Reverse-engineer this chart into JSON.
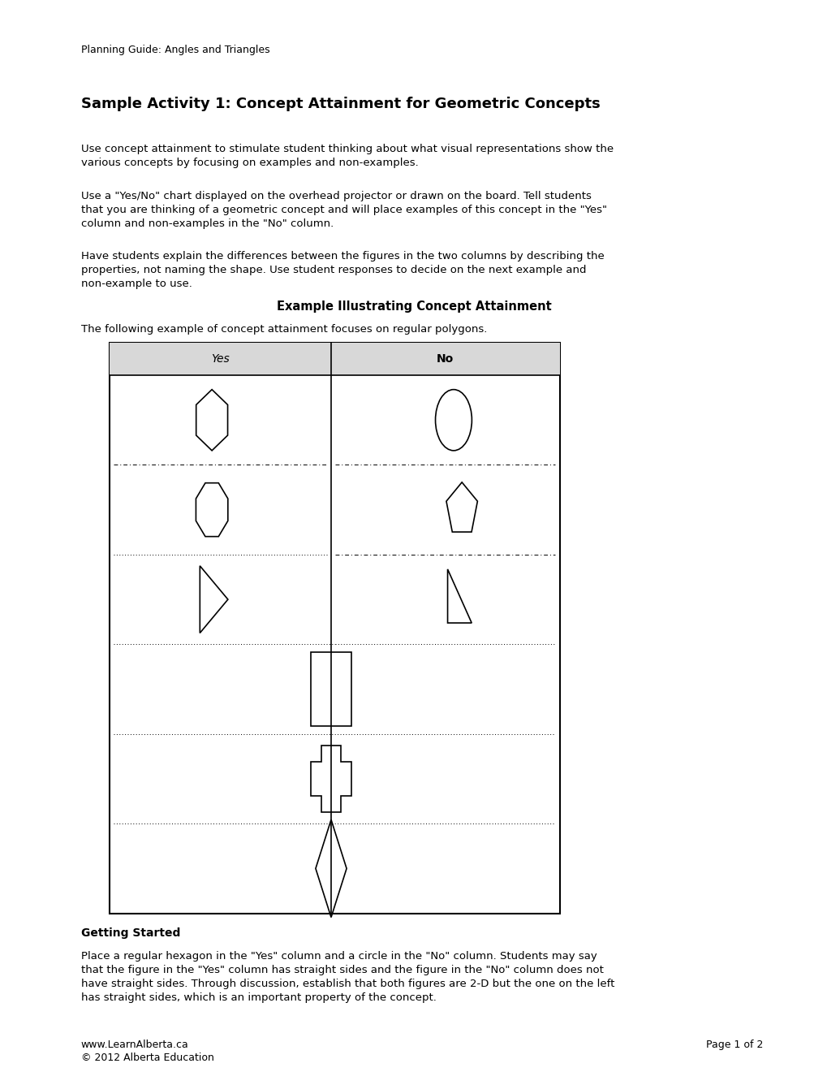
{
  "page_width": 10.2,
  "page_height": 13.2,
  "bg_color": "#ffffff",
  "header_text": "Planning Guide: Angles and Triangles",
  "title": "Sample Activity 1: Concept Attainment for Geometric Concepts",
  "para1": "Use concept attainment to stimulate student thinking about what visual representations show the\nvarious concepts by focusing on examples and non-examples.",
  "para2": "Use a \"Yes/No\" chart displayed on the overhead projector or drawn on the board. Tell students\nthat you are thinking of a geometric concept and will place examples of this concept in the \"Yes\"\ncolumn and non-examples in the \"No\" column.",
  "para3": "Have students explain the differences between the figures in the two columns by describing the\nproperties, not naming the shape. Use student responses to decide on the next example and\nnon-example to use.",
  "section_title": "Example Illustrating Concept Attainment",
  "intro_text": "The following example of concept attainment focuses on regular polygons.",
  "table_yes_label": "Yes",
  "table_no_label": "No",
  "getting_started_title": "Getting Started",
  "getting_started_text": "Place a regular hexagon in the \"Yes\" column and a circle in the \"No\" column. Students may say\nthat the figure in the \"Yes\" column has straight sides and the figure in the \"No\" column does not\nhave straight sides. Through discussion, establish that both figures are 2-D but the one on the left\nhas straight sides, which is an important property of the concept.",
  "footer_left1": "www.LearnAlberta.ca",
  "footer_left2": "© 2012 Alberta Education",
  "footer_right": "Page 1 of 2",
  "text_color": "#000000"
}
